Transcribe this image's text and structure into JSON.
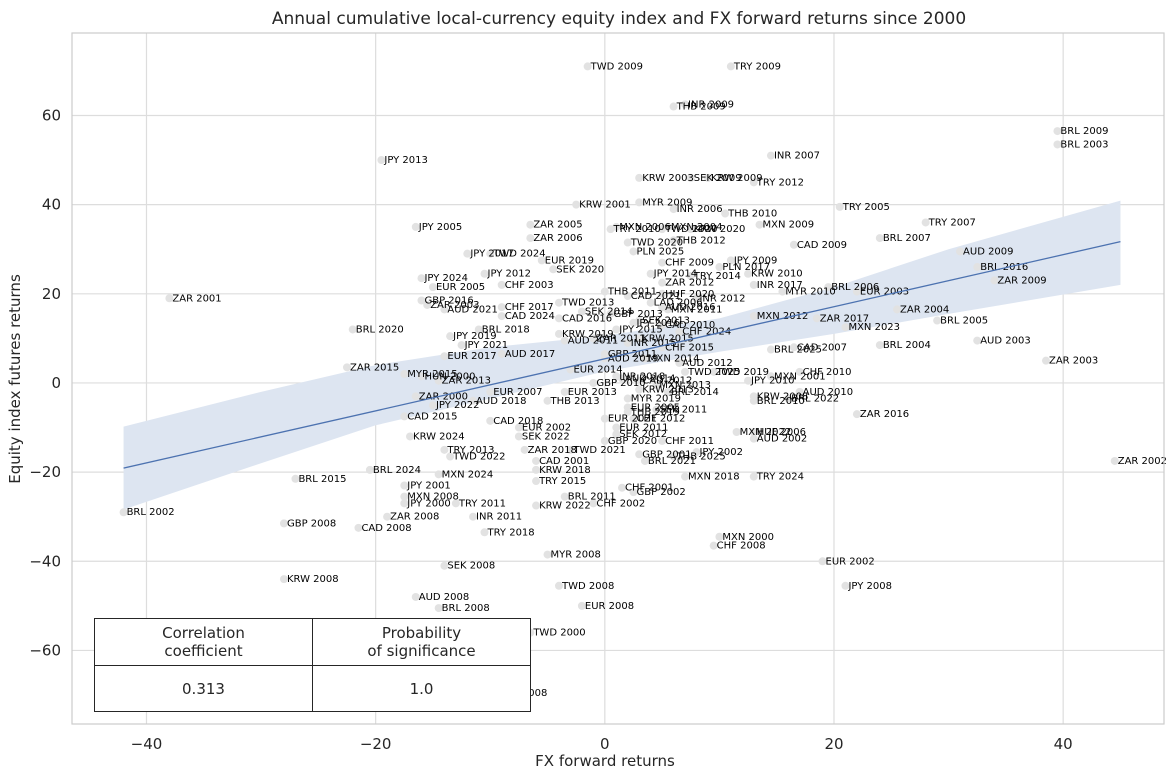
{
  "chart_data": {
    "type": "scatter",
    "title": "Annual cumulative local-currency equity index and FX forward returns since 2000",
    "xlabel": "FX forward returns",
    "ylabel": "Equity index futures returns",
    "xlim": [
      -46.5,
      48.8
    ],
    "ylim": [
      -76.5,
      78.5
    ],
    "xticks": [
      -40,
      -20,
      0,
      20,
      40
    ],
    "yticks": [
      -60,
      -40,
      -20,
      0,
      20,
      40,
      60
    ],
    "grid": true,
    "point_color": "#e2e2e2",
    "regression": {
      "line_color": "#4c72b0",
      "band_color": "#dde5f1",
      "line": [
        [
          -42,
          -19.1
        ],
        [
          45,
          31.7
        ]
      ],
      "band_upper": [
        [
          -42,
          -9.8
        ],
        [
          -30,
          -2.0
        ],
        [
          -20,
          4.0
        ],
        [
          -10,
          8.0
        ],
        [
          0,
          10.6
        ],
        [
          10,
          14.5
        ],
        [
          20,
          21.5
        ],
        [
          30,
          30.0
        ],
        [
          45,
          40.9
        ]
      ],
      "band_lower": [
        [
          -42,
          -28.4
        ],
        [
          -30,
          -18.0
        ],
        [
          -20,
          -9.5
        ],
        [
          -10,
          -3.5
        ],
        [
          0,
          2.6
        ],
        [
          10,
          7.0
        ],
        [
          20,
          11.0
        ],
        [
          30,
          15.5
        ],
        [
          45,
          22.0
        ]
      ]
    },
    "points": [
      {
        "label": "TWD 2009",
        "x": -1.5,
        "y": 71.0
      },
      {
        "label": "TRY 2009",
        "x": 11,
        "y": 71.0
      },
      {
        "label": "THB 2009",
        "x": 6,
        "y": 62.0
      },
      {
        "label": "INR 2009",
        "x": 7,
        "y": 62.5
      },
      {
        "label": "BRL 2009",
        "x": 39.5,
        "y": 56.5
      },
      {
        "label": "BRL 2003",
        "x": 39.5,
        "y": 53.5
      },
      {
        "label": "INR 2007",
        "x": 14.5,
        "y": 51.0
      },
      {
        "label": "JPY 2013",
        "x": -19.5,
        "y": 50.0
      },
      {
        "label": "KRW 2003",
        "x": 3,
        "y": 46.0
      },
      {
        "label": "SEK 2009",
        "x": 7.5,
        "y": 46.0
      },
      {
        "label": "KRW 2009",
        "x": 9,
        "y": 46.0
      },
      {
        "label": "TRY 2012",
        "x": 13,
        "y": 45.0
      },
      {
        "label": "KRW 2001",
        "x": -2.5,
        "y": 40.0
      },
      {
        "label": "MYR 2009",
        "x": 3,
        "y": 40.5
      },
      {
        "label": "INR 2006",
        "x": 6,
        "y": 39.0
      },
      {
        "label": "TRY 2005",
        "x": 20.5,
        "y": 39.5
      },
      {
        "label": "THB 2010",
        "x": 10.5,
        "y": 38.0
      },
      {
        "label": "JPY 2005",
        "x": -16.5,
        "y": 35.0
      },
      {
        "label": "ZAR 2005",
        "x": -6.5,
        "y": 35.5
      },
      {
        "label": "TRY 2007",
        "x": 28,
        "y": 36.0
      },
      {
        "label": "MXN 2009",
        "x": 13.5,
        "y": 35.5
      },
      {
        "label": "TRY 2010",
        "x": 0.5,
        "y": 34.5
      },
      {
        "label": "MXN 2006",
        "x": 1,
        "y": 35.0
      },
      {
        "label": "MXN 2004",
        "x": 5.5,
        "y": 35.0
      },
      {
        "label": "TWD 2020",
        "x": 5,
        "y": 34.5
      },
      {
        "label": "KRW 2020",
        "x": 7.5,
        "y": 34.5
      },
      {
        "label": "BRL 2007",
        "x": 24,
        "y": 32.5
      },
      {
        "label": "ZAR 2006",
        "x": -6.5,
        "y": 32.5
      },
      {
        "label": "CAD 2009",
        "x": 16.5,
        "y": 31.0
      },
      {
        "label": "TWD 2020",
        "x": 2,
        "y": 31.5
      },
      {
        "label": "THB 2012",
        "x": 6,
        "y": 32.0
      },
      {
        "label": "AUD 2009",
        "x": 31,
        "y": 29.5
      },
      {
        "label": "JPY 2017",
        "x": -12,
        "y": 29.0
      },
      {
        "label": "TWD 2024",
        "x": -10,
        "y": 29.0
      },
      {
        "label": "EUR 2019",
        "x": -5.5,
        "y": 27.5
      },
      {
        "label": "PLN 2025",
        "x": 2.5,
        "y": 29.5
      },
      {
        "label": "JPY 2009",
        "x": 11,
        "y": 27.5
      },
      {
        "label": "BRL 2016",
        "x": 32.5,
        "y": 26.0
      },
      {
        "label": "JPY 2024",
        "x": -16,
        "y": 23.5
      },
      {
        "label": "JPY 2012",
        "x": -10.5,
        "y": 24.5
      },
      {
        "label": "SEK 2020",
        "x": -4.5,
        "y": 25.5
      },
      {
        "label": "PLN 2017",
        "x": 10,
        "y": 26.0
      },
      {
        "label": "KRW 2010",
        "x": 12.5,
        "y": 24.5
      },
      {
        "label": "ZAR 2009",
        "x": 34,
        "y": 23.0
      },
      {
        "label": "EUR 2005",
        "x": -15,
        "y": 21.5
      },
      {
        "label": "CHF 2003",
        "x": -9,
        "y": 22.0
      },
      {
        "label": "BRL 2006",
        "x": 19.5,
        "y": 21.5
      },
      {
        "label": "EUR 2003",
        "x": 22,
        "y": 20.5
      },
      {
        "label": "INR 2017",
        "x": 13,
        "y": 22.0
      },
      {
        "label": "MYR 2010",
        "x": 15.5,
        "y": 20.5
      },
      {
        "label": "ZAR 2001",
        "x": -38,
        "y": 19.0
      },
      {
        "label": "GBP 2016",
        "x": -16,
        "y": 18.5
      },
      {
        "label": "AUD 2021",
        "x": -14,
        "y": 16.5
      },
      {
        "label": "ZAR 2003",
        "x": -15.5,
        "y": 17.5
      },
      {
        "label": "CHF 2017",
        "x": -9,
        "y": 17.0
      },
      {
        "label": "TWD 2013",
        "x": -4,
        "y": 18.0
      },
      {
        "label": "LAD 2006",
        "x": 4,
        "y": 18.0
      },
      {
        "label": "ZAR 2004",
        "x": 25.5,
        "y": 16.5
      },
      {
        "label": "CAD 2024",
        "x": -9,
        "y": 15.0
      },
      {
        "label": "MXN 2012",
        "x": 13,
        "y": 15.0
      },
      {
        "label": "ZAR 2017",
        "x": 18.5,
        "y": 14.5
      },
      {
        "label": "BRL 2005",
        "x": 29,
        "y": 14.0
      },
      {
        "label": "BRL 2020",
        "x": -22,
        "y": 12.0
      },
      {
        "label": "MXN 2023",
        "x": 21,
        "y": 12.5
      },
      {
        "label": "JPY 2019",
        "x": -13.5,
        "y": 10.5
      },
      {
        "label": "BRL 2018",
        "x": -11,
        "y": 12.0
      },
      {
        "label": "AUD 2003",
        "x": 32.5,
        "y": 9.5
      },
      {
        "label": "CAD 2007",
        "x": 16.5,
        "y": 8.0
      },
      {
        "label": "BRL 2004",
        "x": 24,
        "y": 8.5
      },
      {
        "label": "BRL 2025",
        "x": 14.5,
        "y": 7.5
      },
      {
        "label": "JPY 2021",
        "x": -12.5,
        "y": 8.5
      },
      {
        "label": "AUD 2017",
        "x": -9,
        "y": 6.5
      },
      {
        "label": "ZAR 2015",
        "x": -22.5,
        "y": 3.5
      },
      {
        "label": "ZAR 2003",
        "x": 38.5,
        "y": 5.0
      },
      {
        "label": "EUR 2017",
        "x": -14,
        "y": 6.0
      },
      {
        "label": "MYR 2015",
        "x": -17.5,
        "y": 2.0
      },
      {
        "label": "HUN 2000",
        "x": -16,
        "y": 1.5
      },
      {
        "label": "CHF 2010",
        "x": 17,
        "y": 2.5
      },
      {
        "label": "TWD 2019",
        "x": 9.5,
        "y": 2.5
      },
      {
        "label": "MXN 2001",
        "x": 14.5,
        "y": 1.5
      },
      {
        "label": "JPY 2010",
        "x": 12.5,
        "y": 0.5
      },
      {
        "label": "ZAR 2013",
        "x": -14.5,
        "y": 0.5
      },
      {
        "label": "AUD 2010",
        "x": 17,
        "y": -2.0
      },
      {
        "label": "BRL 2022",
        "x": 16,
        "y": -3.5
      },
      {
        "label": "EUR 2007",
        "x": -10,
        "y": -2.0
      },
      {
        "label": "KRW 2008",
        "x": 13,
        "y": -3.0
      },
      {
        "label": "ZAR 2000",
        "x": -16.5,
        "y": -3.0
      },
      {
        "label": "BRL 2010",
        "x": 13,
        "y": -4.0
      },
      {
        "label": "AUD 2018",
        "x": -11.5,
        "y": -4.0
      },
      {
        "label": "JPY 2022",
        "x": -15,
        "y": -5.0
      },
      {
        "label": "CAD 2015",
        "x": -17.5,
        "y": -7.5
      },
      {
        "label": "ZAR 2016",
        "x": 22,
        "y": -7.0
      },
      {
        "label": "CAD 2018",
        "x": -10,
        "y": -8.5
      },
      {
        "label": "MXN 2022",
        "x": 11.5,
        "y": -11.0
      },
      {
        "label": "HUF 2006",
        "x": 13,
        "y": -11.0
      },
      {
        "label": "AUD 2002",
        "x": 13,
        "y": -12.5
      },
      {
        "label": "KRW 2024",
        "x": -17,
        "y": -12.0
      },
      {
        "label": "EUR 2002",
        "x": -7.5,
        "y": -10.0
      },
      {
        "label": "SEK 2022",
        "x": -7.5,
        "y": -12.0
      },
      {
        "label": "TRY 2013",
        "x": -14,
        "y": -15.0
      },
      {
        "label": "TWD 2022",
        "x": -13.5,
        "y": -16.5
      },
      {
        "label": "ZAR 2018",
        "x": -7,
        "y": -15.0
      },
      {
        "label": "THB 2025",
        "x": 6,
        "y": -16.5
      },
      {
        "label": "JPY 2002",
        "x": 8,
        "y": -15.5
      },
      {
        "label": "BRL 2024",
        "x": -20.5,
        "y": -19.5
      },
      {
        "label": "MXN 2024",
        "x": -14.5,
        "y": -20.5
      },
      {
        "label": "CAD 2001",
        "x": -6,
        "y": -17.5
      },
      {
        "label": "KRW 2018",
        "x": -6,
        "y": -19.5
      },
      {
        "label": "BRL 2015",
        "x": -27,
        "y": -21.5
      },
      {
        "label": "TRY 2015",
        "x": -6,
        "y": -22.0
      },
      {
        "label": "MXN 2018",
        "x": 7,
        "y": -21.0
      },
      {
        "label": "TRY 2024",
        "x": 13,
        "y": -21.0
      },
      {
        "label": "JPY 2001",
        "x": -17.5,
        "y": -23.0
      },
      {
        "label": "CHF 2001",
        "x": 1.5,
        "y": -23.5
      },
      {
        "label": "GBP 2002",
        "x": 2.5,
        "y": -24.5
      },
      {
        "label": "BRL 2011",
        "x": -3.5,
        "y": -25.5
      },
      {
        "label": "MXN 2008",
        "x": -17.5,
        "y": -25.5
      },
      {
        "label": "TRY 2011",
        "x": -13,
        "y": -27.0
      },
      {
        "label": "JPY 2000",
        "x": -17.5,
        "y": -27.0
      },
      {
        "label": "KRW 2022",
        "x": -6,
        "y": -27.5
      },
      {
        "label": "CHF 2002",
        "x": -1,
        "y": -27.0
      },
      {
        "label": "ZAR 2008",
        "x": -19,
        "y": -30.0
      },
      {
        "label": "INR 2011",
        "x": -11.5,
        "y": -30.0
      },
      {
        "label": "BRL 2002",
        "x": -42,
        "y": -29.0
      },
      {
        "label": "GBP 2008",
        "x": -28,
        "y": -31.5
      },
      {
        "label": "CAD 2008",
        "x": -21.5,
        "y": -32.5
      },
      {
        "label": "TRY 2018",
        "x": -10.5,
        "y": -33.5
      },
      {
        "label": "MXN 2000",
        "x": 10,
        "y": -34.5
      },
      {
        "label": "CHF 2008",
        "x": 9.5,
        "y": -36.5
      },
      {
        "label": "MYR 2008",
        "x": -5,
        "y": -38.5
      },
      {
        "label": "ZAR 2002",
        "x": 44.5,
        "y": -17.5
      },
      {
        "label": "SEK 2008",
        "x": -14,
        "y": -41.0
      },
      {
        "label": "EUR 2002",
        "x": 19,
        "y": -40.0
      },
      {
        "label": "KRW 2008",
        "x": -28,
        "y": -44.0
      },
      {
        "label": "JPY 2008",
        "x": 21,
        "y": -45.5
      },
      {
        "label": "TWD 2008",
        "x": -4,
        "y": -45.5
      },
      {
        "label": "AUD 2008",
        "x": -16.5,
        "y": -48.0
      },
      {
        "label": "BRL 2008",
        "x": -14.5,
        "y": -50.5
      },
      {
        "label": "EUR 2008",
        "x": -2,
        "y": -50.0
      },
      {
        "label": "TWD 2000",
        "x": -6.5,
        "y": -56.0
      },
      {
        "label": "2008",
        "x": -7.5,
        "y": -69.5
      },
      {
        "label": "0",
        "x": -7.5,
        "y": -66.5
      },
      {
        "label": "HUF 2020",
        "x": 5,
        "y": 20.0
      },
      {
        "label": "SEK 2013",
        "x": 3,
        "y": 14.0
      },
      {
        "label": "CAD 2021",
        "x": 2,
        "y": 19.5
      },
      {
        "label": "AUD 2019",
        "x": 0,
        "y": 5.5
      },
      {
        "label": "CAD 2010",
        "x": 5,
        "y": 13.0
      },
      {
        "label": "KRW 2015",
        "x": 3,
        "y": 10.0
      },
      {
        "label": "ZAR 2012",
        "x": 5,
        "y": 22.5
      },
      {
        "label": "CAD 2016",
        "x": -4,
        "y": 14.5
      },
      {
        "label": "GBP 2013",
        "x": 0.5,
        "y": 15.5
      },
      {
        "label": "CHF 2024",
        "x": 6.5,
        "y": 11.5
      },
      {
        "label": "MXN 2013",
        "x": 4.5,
        "y": -0.5
      },
      {
        "label": "EUR 2005",
        "x": 2,
        "y": -5.5
      },
      {
        "label": "MYR 2019",
        "x": 2,
        "y": -3.5
      },
      {
        "label": "THB 2013",
        "x": -5,
        "y": -4.0
      },
      {
        "label": "TWD 2025",
        "x": 7,
        "y": 2.5
      },
      {
        "label": "GBP 2020",
        "x": 0,
        "y": -13.0
      },
      {
        "label": "CHF 2011",
        "x": 5,
        "y": -13.0
      },
      {
        "label": "TWD 2021",
        "x": -3,
        "y": -15.0
      },
      {
        "label": "GBP 2001",
        "x": 3,
        "y": -16.0
      },
      {
        "label": "EUR 2011",
        "x": 1,
        "y": -10.0
      },
      {
        "label": "EUR 2021",
        "x": 0,
        "y": -8.0
      },
      {
        "label": "JPY 2014",
        "x": 4,
        "y": 24.5
      },
      {
        "label": "TRY 2014",
        "x": 7.5,
        "y": 24.0
      },
      {
        "label": "SEK 2014",
        "x": -2,
        "y": 16.0
      },
      {
        "label": "MXN 2014",
        "x": 3.5,
        "y": 5.5
      },
      {
        "label": "JPY 2015",
        "x": 1,
        "y": 12.0
      },
      {
        "label": "CHF 2015",
        "x": 5,
        "y": 8.0
      },
      {
        "label": "INR 2015",
        "x": 2,
        "y": 9.0
      },
      {
        "label": "EUR 2014",
        "x": -3,
        "y": 3.0
      },
      {
        "label": "AUD 2014",
        "x": 1.5,
        "y": 1.0
      },
      {
        "label": "GBP 2010",
        "x": -1,
        "y": 0.0
      },
      {
        "label": "SEK 2011",
        "x": 4.5,
        "y": -6.0
      },
      {
        "label": "CHF 2012",
        "x": 2.5,
        "y": -8.0
      },
      {
        "label": "KRW 2013",
        "x": 3,
        "y": -1.5
      },
      {
        "label": "EUR 2013",
        "x": -3.5,
        "y": -2.0
      },
      {
        "label": "BRL 2021",
        "x": 3.5,
        "y": -17.5
      },
      {
        "label": "CHF 2009",
        "x": 5,
        "y": 27.0
      },
      {
        "label": "INR 2012",
        "x": 8,
        "y": 19.0
      },
      {
        "label": "GBP 2011",
        "x": 0,
        "y": 6.5
      },
      {
        "label": "AUD 2012",
        "x": 6.5,
        "y": 4.5
      },
      {
        "label": "ZAR 2011",
        "x": -1,
        "y": 10.0
      },
      {
        "label": "THB 2011",
        "x": 0,
        "y": 20.5
      },
      {
        "label": "MXN 2011",
        "x": 5.5,
        "y": 16.5
      },
      {
        "label": "INR 2018",
        "x": 1,
        "y": 1.5
      },
      {
        "label": "CAD 2012",
        "x": 3,
        "y": 0.5
      },
      {
        "label": "KRW 2019",
        "x": -4,
        "y": 11.0
      },
      {
        "label": "SEK 2012",
        "x": 1,
        "y": -11.5
      },
      {
        "label": "AUD 2016",
        "x": 5,
        "y": 17.0
      },
      {
        "label": "JPY 2016",
        "x": 2.5,
        "y": 13.5
      },
      {
        "label": "AUD 2011",
        "x": -3.5,
        "y": 9.5
      },
      {
        "label": "BRL 2014",
        "x": 5.5,
        "y": -2.0
      },
      {
        "label": "THB 2019",
        "x": 2,
        "y": -6.5
      }
    ]
  },
  "stats_table": {
    "headers": [
      "Correlation\ncoefficient",
      "Probability\nof significance"
    ],
    "values": [
      "0.313",
      "1.0"
    ]
  }
}
